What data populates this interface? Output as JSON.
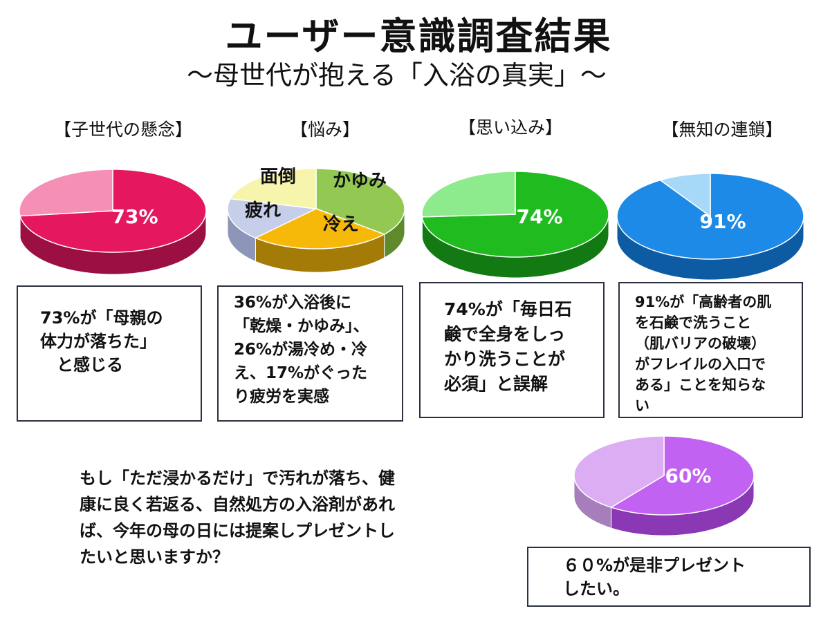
{
  "title": "ユーザー意識調査結果",
  "subtitle": "～母世代が抱える「入浴の真実」～",
  "chart_data": [
    {
      "type": "pie",
      "title": "【子世代の懸念】",
      "slices": [
        {
          "label": "73%",
          "value": 73,
          "color": "#e5175f",
          "side": "#9c0f42"
        },
        {
          "label": "",
          "value": 27,
          "color": "#f58fb5",
          "side": "#c06a8a"
        }
      ]
    },
    {
      "type": "pie",
      "title": "【悩み】",
      "slices": [
        {
          "label": "かゆみ",
          "value": 36,
          "color": "#93c853",
          "side": "#5e8a2c"
        },
        {
          "label": "冷え",
          "value": 26,
          "color": "#f6b90a",
          "side": "#a47b06"
        },
        {
          "label": "疲れ",
          "value": 17,
          "color": "#c6cee9",
          "side": "#8d96b8"
        },
        {
          "label": "面倒",
          "value": 21,
          "color": "#f7f4ab",
          "side": "#bdb978"
        }
      ]
    },
    {
      "type": "pie",
      "title": "【思い込み】",
      "slices": [
        {
          "label": "74%",
          "value": 74,
          "color": "#1fbb1f",
          "side": "#137a13"
        },
        {
          "label": "",
          "value": 26,
          "color": "#8deb8d",
          "side": "#5fae5f"
        }
      ]
    },
    {
      "type": "pie",
      "title": "【無知の連鎖】",
      "slices": [
        {
          "label": "91%",
          "value": 91,
          "color": "#1c8ae6",
          "side": "#0d5ca3"
        },
        {
          "label": "",
          "value": 9,
          "color": "#a6d9f7",
          "side": "#72a8c8"
        }
      ]
    },
    {
      "type": "pie",
      "title": "",
      "slices": [
        {
          "label": "60%",
          "value": 60,
          "color": "#c262f2",
          "side": "#8a38b3"
        },
        {
          "label": "",
          "value": 40,
          "color": "#dcadf2",
          "side": "#a57ebb"
        }
      ]
    }
  ],
  "boxes": [
    "73%が「母親の\n体力が落ちた」\n　と感じる",
    "36%が入浴後に\n「乾燥・かゆみ」、\n26%が湯冷め・冷\nえ、17%がぐった\nり疲労を実感",
    "74%が「毎日石\n鹸で全身をしっ\nかり洗うことが\n必須」と誤解",
    "91%が「高齢者の肌\nを石鹸で洗うこと\n（肌バリアの破壊）\nがフレイルの入口で\nある」ことを知らな\nい",
    "６０%が是非プレゼント\nしたい。"
  ],
  "question": "もし「ただ浸かるだけ」で汚れが落ち、健\n康に良く若返る、自然処方の入浴剤があれ\nば、今年の母の日には提案しプレゼントし\nたいと思いますか？"
}
